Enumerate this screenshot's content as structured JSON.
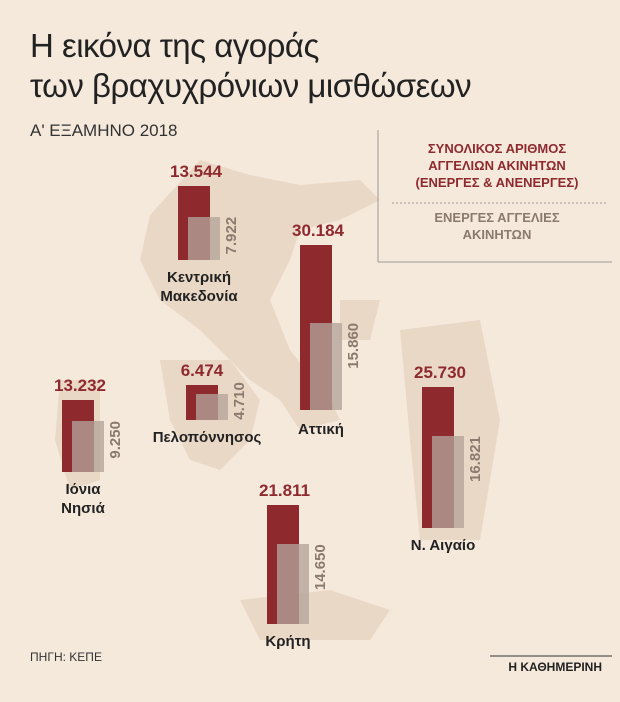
{
  "title": "Η εικόνα της αγοράς\nτων βραχυχρόνιων μισθώσεων",
  "subtitle": "Α' ΕΞΑΜΗΝΟ 2018",
  "source": "ΠΗΓΗ: ΚΕΠΕ",
  "brand": "Η ΚΑΘΗΜΕΡΙΝΗ",
  "chart_data": {
    "type": "bar",
    "categories": [
      "Κεντρική\nΜακεδονία",
      "Αττική",
      "Ιόνια\nΝησιά",
      "Πελοπόννησος",
      "Ν. Αιγαίο",
      "Κρήτη"
    ],
    "series": [
      {
        "name": "ΣΥΝΟΛΙΚΟΣ ΑΡΙΘΜΟΣ\nΑΓΓΕΛΙΩΝ ΑΚΙΝΗΤΩΝ\n(ΕΝΕΡΓΕΣ & ΑΝΕΝΕΡΓΕΣ)",
        "color": "#8e2a2e",
        "values": [
          13544,
          30184,
          13232,
          6474,
          25730,
          21811
        ],
        "value_labels": [
          "13.544",
          "30.184",
          "13.232",
          "6.474",
          "25.730",
          "21.811"
        ]
      },
      {
        "name": "ΕΝΕΡΓΕΣ ΑΓΓΕΛΙΕΣ\nΑΚΙΝΗΤΩΝ",
        "color": "#b3a398",
        "values": [
          7922,
          15860,
          9250,
          4710,
          16821,
          14650
        ],
        "value_labels": [
          "7.922",
          "15.860",
          "9.250",
          "4.710",
          "16.821",
          "14.650"
        ]
      }
    ]
  }
}
